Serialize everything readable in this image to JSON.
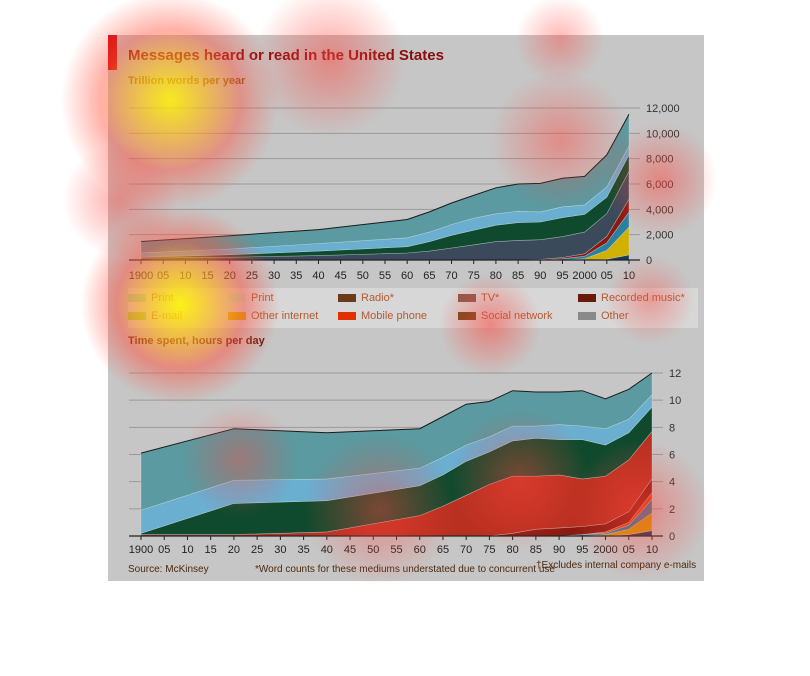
{
  "header": {
    "title": "Messages heard or read in the United States",
    "source": "Source: McKinsey",
    "footnote_1": "*Word counts for these mediums understated due to concurrent use",
    "footnote_2": "†Excludes internal company e-mails"
  },
  "colors": {
    "accent": "#d10a0a",
    "panel": "#c6c6c6",
    "teal": "#5a9aa0",
    "light_blue": "#6aaed0",
    "dark_green": "#0f4a2e",
    "dark_teal": "#2e5a64",
    "red": "#b83020"
  },
  "legend": {
    "items": [
      {
        "label": "Print",
        "color": "#9ad0b0"
      },
      {
        "label": "Print",
        "color": "#b8e0c0"
      },
      {
        "label": "Radio*",
        "color": "#6a3a1a"
      },
      {
        "label": "TV*",
        "color": "#8a5a4a"
      },
      {
        "label": "Recorded music*",
        "color": "#6a1a0a"
      },
      {
        "label": "E-mail",
        "color": "#9ad040"
      },
      {
        "label": "Other internet",
        "color": "#d0b000"
      },
      {
        "label": "Mobile phone",
        "color": "#e03000"
      },
      {
        "label": "Social network",
        "color": "#6a4a1a"
      },
      {
        "label": "Other",
        "color": "#8a8a8a"
      }
    ]
  },
  "chart_data": [
    {
      "type": "area",
      "subtitle": "Trillion words per year",
      "x_ticks": [
        "1900",
        "05",
        "10",
        "15",
        "20",
        "25",
        "30",
        "35",
        "40",
        "45",
        "50",
        "55",
        "60",
        "65",
        "70",
        "75",
        "80",
        "85",
        "90",
        "95",
        "2000",
        "05",
        "10"
      ],
      "x": [
        1900,
        1920,
        1940,
        1960,
        1965,
        1970,
        1975,
        1980,
        1985,
        1990,
        1995,
        2000,
        2005,
        2010
      ],
      "y_ticks": [
        "0",
        "2,000",
        "4,000",
        "6,000",
        "8,000",
        "10,000",
        "12,000"
      ],
      "ylim": [
        0,
        12000
      ],
      "series": [
        {
          "color": "#1a3a5a",
          "values": [
            0,
            0,
            0,
            0,
            0,
            0,
            0,
            0,
            0,
            0,
            0,
            0,
            60,
            400
          ]
        },
        {
          "color": "#d0b000",
          "values": [
            0,
            0,
            0,
            0,
            0,
            0,
            0,
            0,
            0,
            0,
            0,
            100,
            700,
            2200
          ]
        },
        {
          "color": "#2a80a0",
          "values": [
            0,
            0,
            0,
            0,
            0,
            0,
            0,
            0,
            0,
            0,
            100,
            200,
            600,
            1200
          ]
        },
        {
          "color": "#8a1a10",
          "values": [
            0,
            0,
            0,
            0,
            0,
            0,
            0,
            0,
            0,
            50,
            100,
            200,
            500,
            1000
          ]
        },
        {
          "color": "#3a4a5a",
          "values": [
            150,
            220,
            350,
            550,
            700,
            950,
            1200,
            1450,
            1550,
            1550,
            1650,
            1700,
            1800,
            2200
          ]
        },
        {
          "color": "#0f4a2e",
          "values": [
            60,
            200,
            350,
            500,
            750,
            1000,
            1150,
            1300,
            1400,
            1400,
            1500,
            1400,
            1300,
            1300
          ]
        },
        {
          "color": "#6aaed0",
          "values": [
            350,
            450,
            600,
            700,
            750,
            850,
            950,
            900,
            900,
            800,
            850,
            750,
            800,
            700
          ]
        },
        {
          "color": "#5a9aa0",
          "values": [
            900,
            1050,
            1100,
            1450,
            1600,
            1700,
            1800,
            2050,
            2150,
            2250,
            2250,
            2250,
            2540,
            2500
          ]
        }
      ]
    },
    {
      "type": "area",
      "subtitle": "Time spent, hours per day",
      "x_ticks": [
        "1900",
        "05",
        "10",
        "15",
        "20",
        "25",
        "30",
        "35",
        "40",
        "45",
        "50",
        "55",
        "60",
        "65",
        "70",
        "75",
        "80",
        "85",
        "90",
        "95",
        "2000",
        "05",
        "10"
      ],
      "x": [
        1900,
        1920,
        1940,
        1960,
        1965,
        1970,
        1975,
        1980,
        1985,
        1990,
        1995,
        2000,
        2005,
        2010
      ],
      "y_ticks": [
        "0",
        "2",
        "4",
        "6",
        "8",
        "10",
        "12"
      ],
      "ylim": [
        0,
        12
      ],
      "series": [
        {
          "color": "#1a3a5a",
          "values": [
            0,
            0,
            0,
            0,
            0,
            0,
            0,
            0,
            0,
            0,
            0,
            0,
            0.1,
            0.4
          ]
        },
        {
          "color": "#d0a000",
          "values": [
            0,
            0,
            0,
            0,
            0,
            0,
            0,
            0,
            0,
            0,
            0,
            0.1,
            0.4,
            1.3
          ]
        },
        {
          "color": "#2a80a0",
          "values": [
            0,
            0,
            0,
            0,
            0,
            0,
            0,
            0,
            0,
            0,
            0.1,
            0.1,
            0.3,
            1.0
          ]
        },
        {
          "color": "#e04000",
          "values": [
            0,
            0,
            0,
            0,
            0,
            0,
            0,
            0,
            0,
            0,
            0,
            0.1,
            0.2,
            0.5
          ]
        },
        {
          "color": "#8a1a10",
          "values": [
            0,
            0,
            0,
            0,
            0,
            0,
            0,
            0.2,
            0.5,
            0.6,
            0.6,
            0.6,
            0.8,
            1.0
          ]
        },
        {
          "color": "#b83020",
          "values": [
            0.1,
            0.1,
            0.3,
            1.5,
            2.2,
            3.0,
            3.8,
            4.2,
            3.9,
            3.9,
            3.5,
            3.5,
            3.8,
            3.5
          ]
        },
        {
          "color": "#0f4a2e",
          "values": [
            0.1,
            2.3,
            2.3,
            2.2,
            2.3,
            2.5,
            2.4,
            2.6,
            2.8,
            2.6,
            2.9,
            2.3,
            2.0,
            1.8
          ]
        },
        {
          "color": "#6aaed0",
          "values": [
            1.7,
            1.7,
            1.6,
            1.3,
            1.3,
            1.2,
            1.1,
            1.1,
            0.9,
            1.1,
            1.0,
            1.2,
            1.0,
            0.9
          ]
        },
        {
          "color": "#5a9aa0",
          "values": [
            4.2,
            3.8,
            3.4,
            2.9,
            3.0,
            3.0,
            2.6,
            2.6,
            2.5,
            2.4,
            2.6,
            2.2,
            2.2,
            1.6
          ]
        }
      ]
    }
  ]
}
